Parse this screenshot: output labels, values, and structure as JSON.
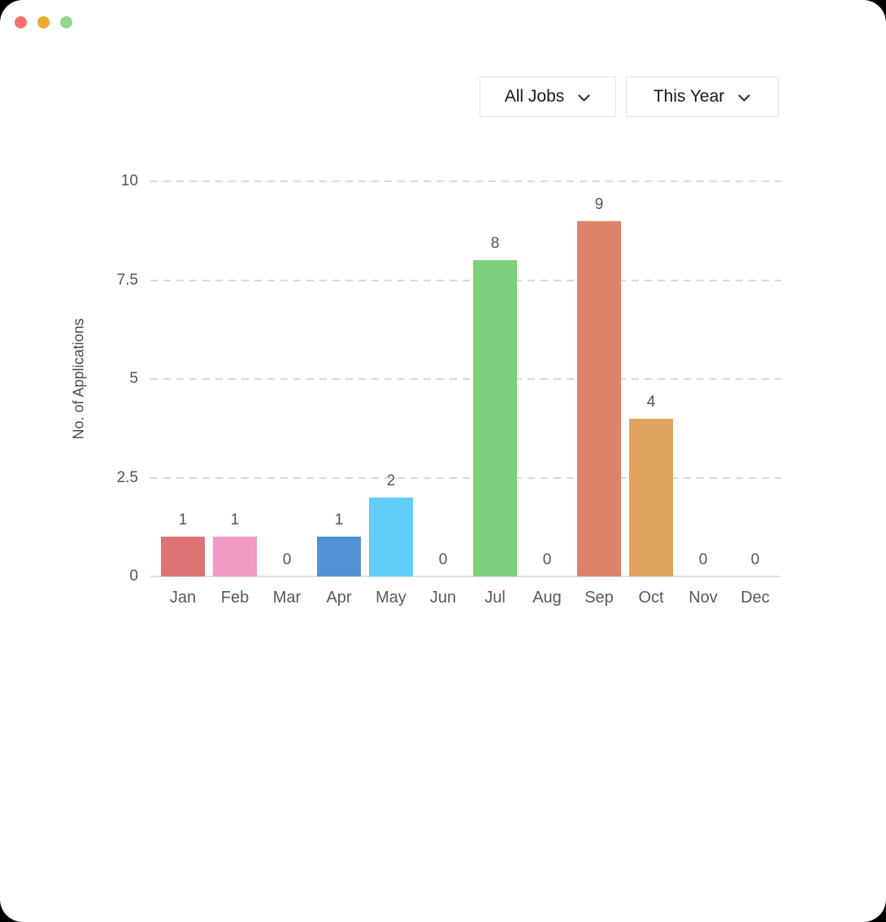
{
  "window": {
    "traffic_lights": [
      {
        "name": "close",
        "color": "#FA7070"
      },
      {
        "name": "minimize",
        "color": "#ECA92D"
      },
      {
        "name": "maximize",
        "color": "#8FD98F"
      }
    ]
  },
  "filters": {
    "jobs": {
      "value": "All Jobs"
    },
    "period": {
      "value": "This Year"
    }
  },
  "chart_data": {
    "type": "bar",
    "categories": [
      "Jan",
      "Feb",
      "Mar",
      "Apr",
      "May",
      "Jun",
      "Jul",
      "Aug",
      "Sep",
      "Oct",
      "Nov",
      "Dec"
    ],
    "values": [
      1,
      1,
      0,
      1,
      2,
      0,
      8,
      0,
      9,
      4,
      0,
      0
    ],
    "bar_colors": [
      "#DD7373",
      "#F09AC4",
      null,
      "#5191D6",
      "#5FCDF7",
      null,
      "#7DD17C",
      null,
      "#DD8265",
      "#E0A45C",
      null,
      null
    ],
    "title": "",
    "xlabel": "",
    "ylabel": "No. of Applications",
    "ylim": [
      0,
      10
    ],
    "yticks": [
      0,
      2.5,
      5,
      7.5,
      10
    ],
    "grid": true,
    "grid_style": "dashed",
    "legend": false,
    "show_value_labels": true
  },
  "theme": {
    "grid_line": "#D9D9D9",
    "axis_line": "#DDE3EA",
    "tick_text": "#555555",
    "dropdown_border": "#E3E3E3",
    "dropdown_text": "#16191F",
    "window_bg": "#FFFFFF"
  }
}
